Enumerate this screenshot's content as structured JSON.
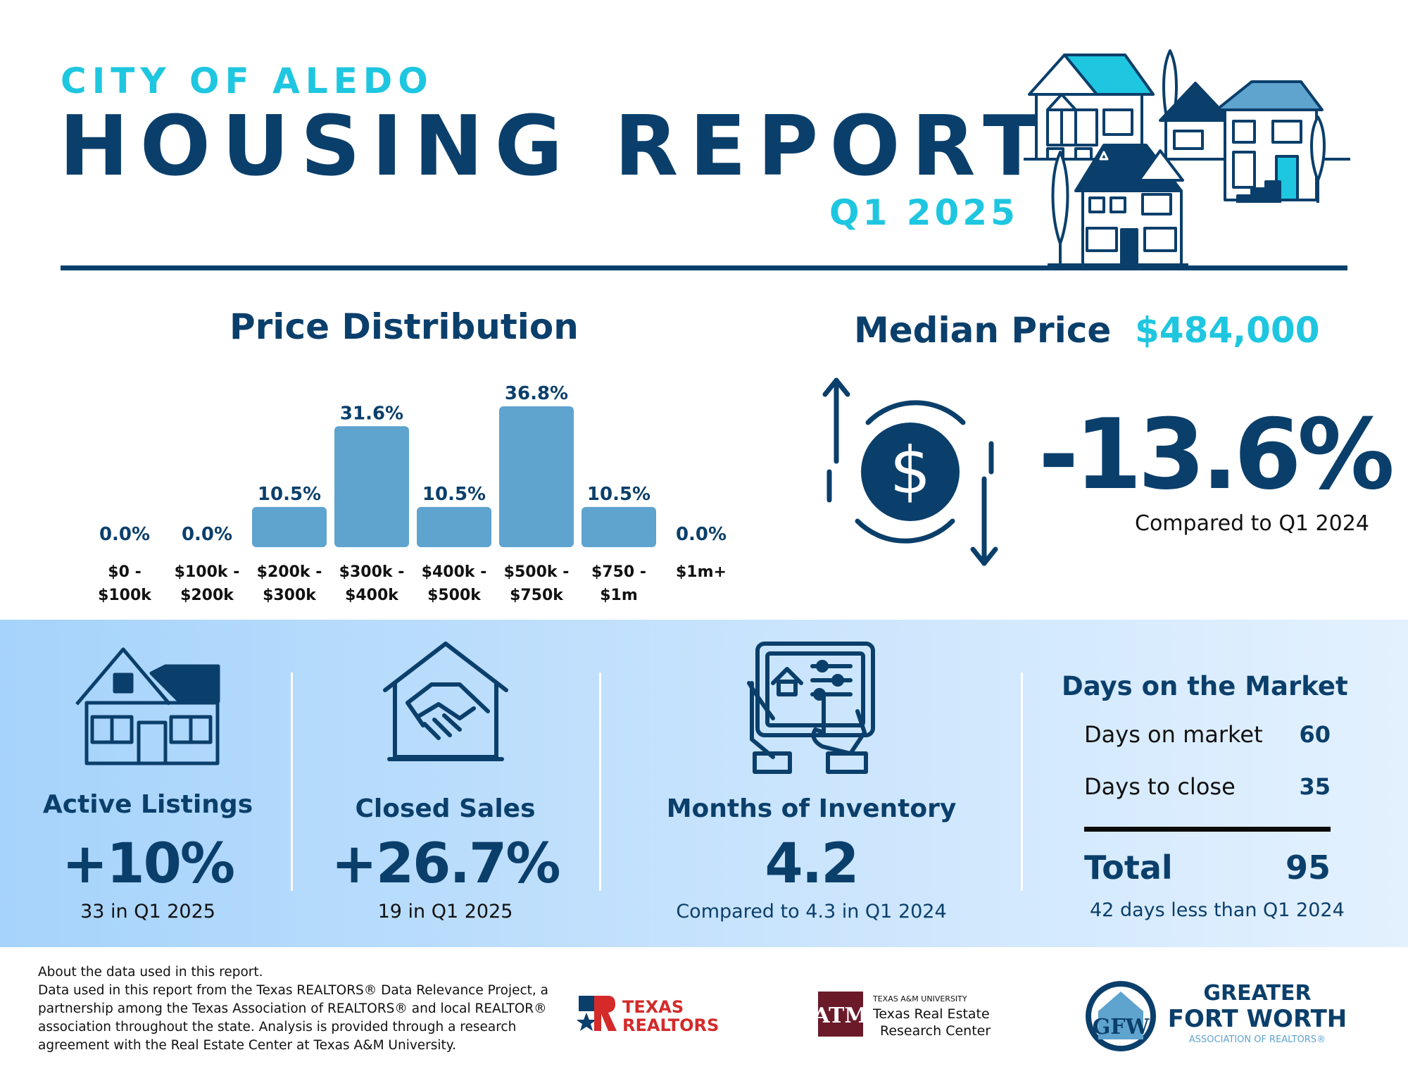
{
  "header": {
    "city": "CITY OF ALEDO",
    "title": "HOUSING REPORT",
    "quarter": "Q1 2025"
  },
  "price_distribution": {
    "title": "Price Distribution",
    "chart_data": {
      "type": "bar",
      "categories": [
        [
          "$0 -",
          "$100k"
        ],
        [
          "$100k -",
          "$200k"
        ],
        [
          "$200k -",
          "$300k"
        ],
        [
          "$300k -",
          "$400k"
        ],
        [
          "$400k -",
          "$500k"
        ],
        [
          "$500k -",
          "$750k"
        ],
        [
          "$750 -",
          "$1m"
        ],
        [
          "$1m+"
        ]
      ],
      "values": [
        0.0,
        0.0,
        10.5,
        31.6,
        10.5,
        36.8,
        10.5,
        0.0
      ],
      "value_labels": [
        "0.0%",
        "0.0%",
        "10.5%",
        "31.6%",
        "10.5%",
        "36.8%",
        "10.5%",
        "0.0%"
      ],
      "ylim": [
        0,
        36.8
      ],
      "bar_color": "#5fa3cf",
      "label_color": "#0b3f6b",
      "grid": false,
      "title": "Price Distribution",
      "xlabel": "",
      "ylabel": ""
    }
  },
  "median": {
    "label": "Median Price",
    "value": "$484,000",
    "change": "-13.6%",
    "compare": "Compared to Q1 2024",
    "icon": "dollar-cycle-icon"
  },
  "stats": {
    "active_listings": {
      "label": "Active Listings",
      "value": "+10%",
      "sub": "33 in Q1 2025",
      "icon": "house-icon"
    },
    "closed_sales": {
      "label": "Closed Sales",
      "value": "+26.7%",
      "sub": "19 in Q1 2025",
      "icon": "handshake-house-icon"
    },
    "months_inventory": {
      "label": "Months of Inventory",
      "value": "4.2",
      "sub": "Compared to 4.3 in Q1 2024",
      "icon": "tablet-hands-icon"
    },
    "days_on_market": {
      "title": "Days on the Market",
      "rows": [
        {
          "label": "Days on market",
          "value": "60"
        },
        {
          "label": "Days to close",
          "value": "35"
        }
      ],
      "total_label": "Total",
      "total_value": "95",
      "sub": "42 days less than Q1 2024"
    }
  },
  "footer": {
    "about": "About the data used in this report.",
    "body": "Data used in this report from the Texas REALTORS® Data Relevance Project, a partnership among the Texas Association of REALTORS® and local REALTOR® association throughout the state. Analysis is provided through a research agreement with the Real Estate Center at Texas A&M University.",
    "logos": {
      "texas_realtors": [
        "TEXAS",
        "REALTORS®"
      ],
      "tamu_small": "TEXAS A&M UNIVERSITY",
      "tamu_line1": "Texas Real Estate",
      "tamu_line2": "Research Center",
      "gfw_line1": "GREATER",
      "gfw_line2": "FORT WORTH",
      "gfw_line3": "ASSOCIATION OF REALTORS®"
    }
  },
  "colors": {
    "navy": "#0b3f6b",
    "cyan": "#1ec6e0",
    "bar": "#5fa3cf",
    "band_start": "#a6d3fb",
    "band_end": "#e3f1fe",
    "maroon": "#6b1a2a",
    "realtor_red": "#d42a2a"
  }
}
